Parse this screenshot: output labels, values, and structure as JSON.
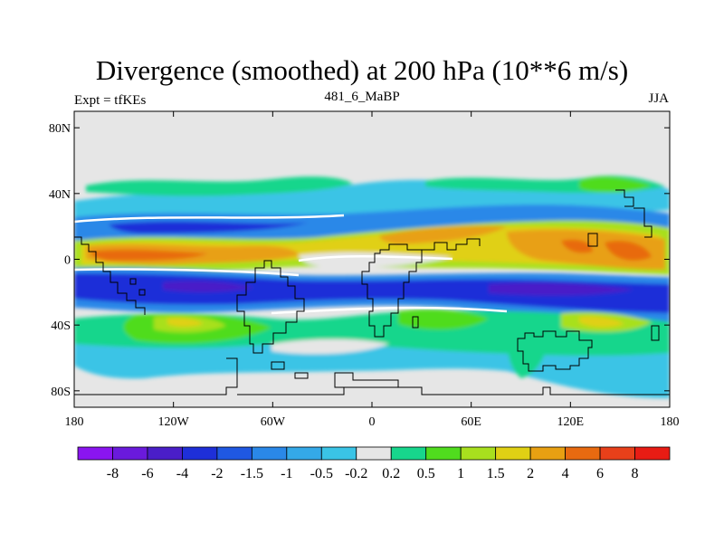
{
  "header": {
    "title": "Divergence (smoothed) at 200 hPa (10**6 m/s)",
    "left_subtitle": "Expt = tfKEs",
    "center_subtitle": "481_6_MaBP",
    "right_subtitle": "JJA"
  },
  "chart_data": {
    "type": "heatmap",
    "title": "Divergence (smoothed) at 200 hPa (10**6 m/s)",
    "x_ticks": [
      "180",
      "120W",
      "60W",
      "0",
      "60E",
      "120E",
      "180"
    ],
    "y_ticks": [
      "80N",
      "40N",
      "0",
      "40S",
      "80S"
    ],
    "xlim": [
      -180,
      180
    ],
    "ylim": [
      -90,
      90
    ],
    "colorbar": {
      "labels": [
        "-8",
        "-6",
        "-4",
        "-2",
        "-1.5",
        "-1",
        "-0.5",
        "-0.2",
        "0.2",
        "0.5",
        "1",
        "1.5",
        "2",
        "4",
        "6",
        "8"
      ],
      "colors": [
        "#8a15f0",
        "#6a1adc",
        "#4a1ec8",
        "#1e2fd8",
        "#1f58e2",
        "#2a88e8",
        "#34a9e8",
        "#3ac4e6",
        "#e6e6e6",
        "#17d68c",
        "#50dc1e",
        "#a8e01e",
        "#e0d014",
        "#e8a012",
        "#e86a10",
        "#e8401a",
        "#e81c14"
      ]
    },
    "bands": [
      {
        "lat_range": [
          30,
          45
        ],
        "description_level": "0.5 to 1.5 (green)"
      },
      {
        "lat_range": [
          10,
          25
        ],
        "description_level": "-0.5 to -2 (blue)"
      },
      {
        "lat_range": [
          -5,
          10
        ],
        "description_level": "1.5 to 6 (yellow/orange/red)"
      },
      {
        "lat_range": [
          -30,
          -10
        ],
        "description_level": "-2 to -8 (blue/purple)"
      },
      {
        "lat_range": [
          -50,
          -35
        ],
        "description_level": "0.5 to 2 (green/yellow)"
      }
    ]
  },
  "colors": {
    "background": "#e6e6e6",
    "coastline": "#000000"
  }
}
